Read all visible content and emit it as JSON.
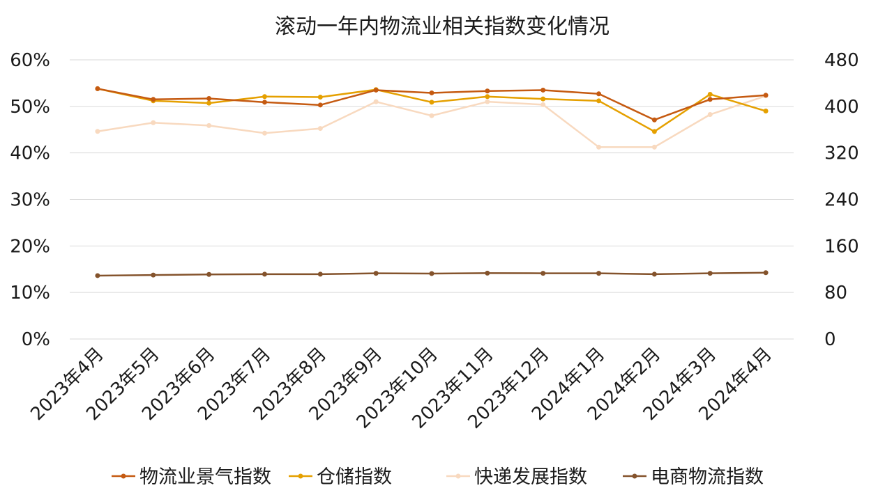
{
  "chart_data": {
    "type": "line",
    "title": "滚动一年内物流业相关指数变化情况",
    "categories": [
      "2023年4月",
      "2023年5月",
      "2023年6月",
      "2023年7月",
      "2023年8月",
      "2023年9月",
      "2023年10月",
      "2023年11月",
      "2023年12月",
      "2024年1月",
      "2024年2月",
      "2024年3月",
      "2024年4月"
    ],
    "y_left": {
      "ylim": [
        0,
        60
      ],
      "ticks": [
        "0%",
        "10%",
        "20%",
        "30%",
        "40%",
        "50%",
        "60%"
      ]
    },
    "y_right": {
      "ylim": [
        0,
        480
      ],
      "ticks": [
        "0",
        "80",
        "160",
        "240",
        "320",
        "400",
        "480"
      ]
    },
    "grid": true,
    "legend_position": "bottom",
    "series": [
      {
        "name": "物流业景气指数",
        "axis": "left",
        "color": "#c55a11",
        "values": [
          53.8,
          51.5,
          51.7,
          50.9,
          50.3,
          53.5,
          52.9,
          53.3,
          53.5,
          52.7,
          47.1,
          51.5,
          52.4
        ]
      },
      {
        "name": "仓储指数",
        "axis": "left",
        "color": "#e5a000",
        "values": [
          53.8,
          51.2,
          50.7,
          52.1,
          52.0,
          53.6,
          50.9,
          52.1,
          51.6,
          51.2,
          44.6,
          52.6,
          49.0
        ]
      },
      {
        "name": "快递发展指数",
        "axis": "right",
        "color": "#f8d9bf",
        "values": [
          357,
          372,
          367,
          354,
          362,
          408,
          384,
          408,
          403,
          330,
          330,
          386,
          418
        ]
      },
      {
        "name": "电商物流指数",
        "axis": "right",
        "color": "#84532c",
        "values": [
          109,
          110,
          111,
          111.5,
          111.5,
          113,
          112.5,
          113.3,
          113,
          113,
          111.5,
          113,
          114
        ]
      }
    ]
  }
}
